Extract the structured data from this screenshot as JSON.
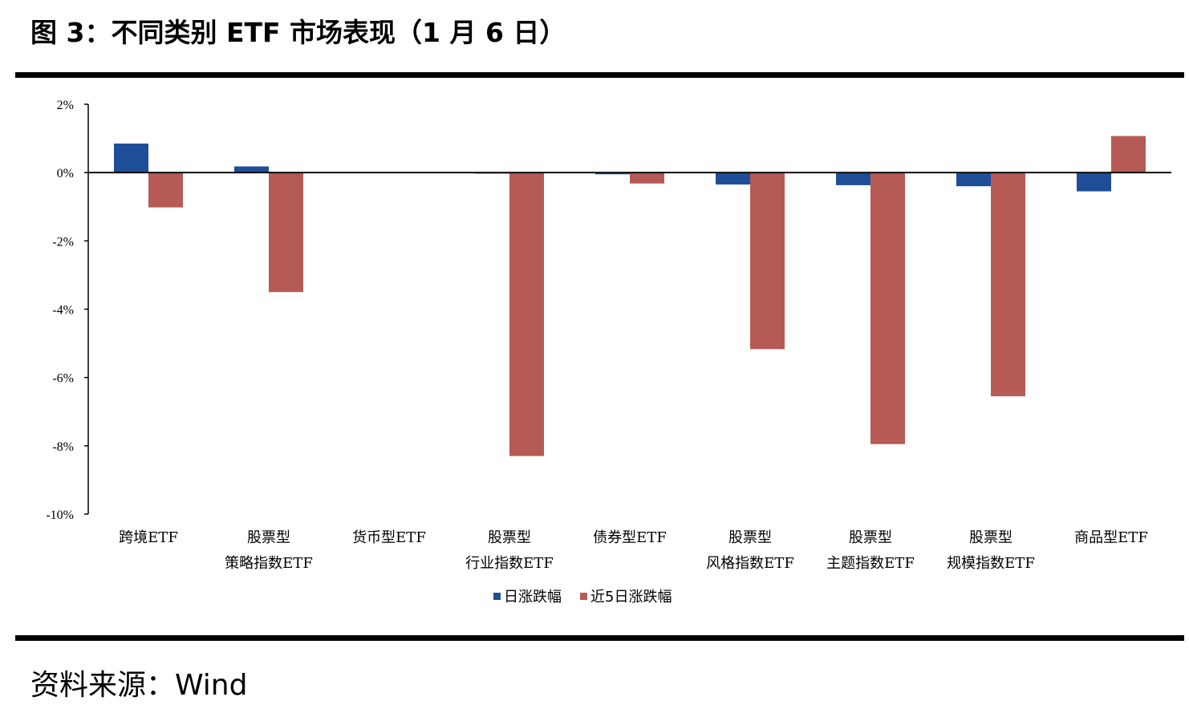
{
  "figure": {
    "title": "图 3：不同类别 ETF 市场表现（1 月 6 日）",
    "source": "资料来源：Wind"
  },
  "chart_data": {
    "type": "bar",
    "categories": [
      [
        "跨境ETF"
      ],
      [
        "股票型",
        "策略指数ETF"
      ],
      [
        "货币型ETF"
      ],
      [
        "股票型",
        "行业指数ETF"
      ],
      [
        "债券型ETF"
      ],
      [
        "股票型",
        "风格指数ETF"
      ],
      [
        "股票型",
        "主题指数ETF"
      ],
      [
        "股票型",
        "规模指数ETF"
      ],
      [
        "商品型ETF"
      ]
    ],
    "series": [
      {
        "name": "日涨跌幅",
        "color": "#1f4e99",
        "values": [
          0.85,
          0.18,
          0.0,
          -0.03,
          -0.05,
          -0.35,
          -0.37,
          -0.4,
          -0.55
        ]
      },
      {
        "name": "近5日涨跌幅",
        "color": "#b55a55",
        "values": [
          -1.02,
          -3.5,
          0.0,
          -8.3,
          -0.32,
          -5.17,
          -7.95,
          -6.55,
          1.07
        ]
      }
    ],
    "ylim": [
      -10,
      2
    ],
    "yticks": [
      2,
      0,
      -2,
      -4,
      -6,
      -8,
      -10
    ],
    "ytick_labels": [
      "2%",
      "0%",
      "-2%",
      "-4%",
      "-6%",
      "-8%",
      "-10%"
    ],
    "grid": false,
    "legend": "bottom-center"
  }
}
